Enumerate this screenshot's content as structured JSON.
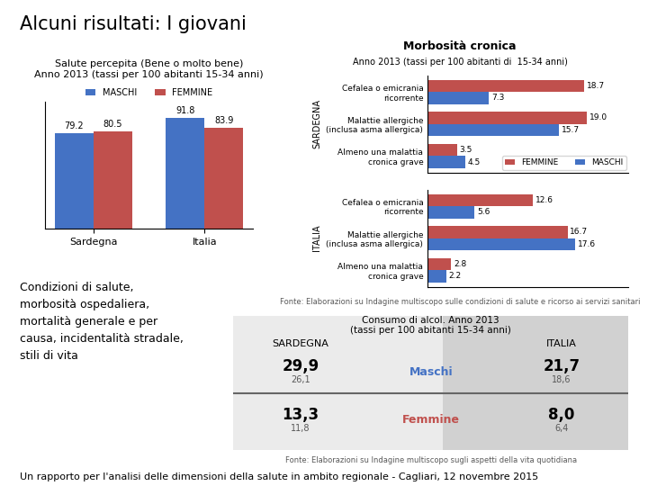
{
  "title": "Alcuni risultati: I giovani",
  "annotations": [
    "Condizioni di salute,\nmorbosità ospedaliera,\nmortalità generale e per\ncausa, incidentalità stradale,\nstili di vita",
    "Un rapporto per l'analisi delle dimensioni della salute in ambito regionale - Cagliari, 12 novembre 2015"
  ],
  "chart_data": [
    {
      "type": "bar",
      "title": "Salute percepita (Bene o molto bene)\nAnno 2013 (tassi per 100 abitanti 15-34 anni)",
      "categories": [
        "Sardegna",
        "Italia"
      ],
      "series": [
        {
          "name": "MASCHI",
          "color": "#4472C4",
          "values": [
            79.2,
            91.8
          ]
        },
        {
          "name": "FEMMINE",
          "color": "#C0504D",
          "values": [
            80.5,
            83.9
          ]
        }
      ],
      "ylim": [
        0,
        105
      ],
      "yticks": [],
      "tick_labels": "x",
      "data_labels": true,
      "legend": "upper center"
    },
    {
      "type": "bar",
      "orientation": "horizontal",
      "title": "Morbosità cronica",
      "subtitle": "Anno 2013 (tassi per 100 abitanti di  15-34 anni)",
      "ylabel": "SARDEGNA",
      "categories": [
        "Cefalea o emicrania ricorrente",
        "Malattie allergiche (inclusa asma allergica)",
        "Almeno una malattia cronica grave"
      ],
      "series": [
        {
          "name": "FEMMINE",
          "color": "#C0504D",
          "values": [
            18.7,
            19.0,
            3.5
          ]
        },
        {
          "name": "MASCHI",
          "color": "#4472C4",
          "values": [
            7.3,
            15.7,
            4.5
          ]
        }
      ],
      "xlim": [
        0,
        24
      ],
      "xticks": [],
      "tick_labels": "y",
      "data_labels": true,
      "legend": "lower right"
    },
    {
      "type": "bar",
      "orientation": "horizontal",
      "ylabel": "ITALIA",
      "categories": [
        "Cefalea o emicrania ricorrente",
        "Malattie allergiche (inclusa asma allergica)",
        "Almeno una malattia cronica grave"
      ],
      "series": [
        {
          "name": "FEMMINE",
          "color": "#C0504D",
          "values": [
            12.6,
            16.7,
            2.8
          ]
        },
        {
          "name": "MASCHI",
          "color": "#4472C4",
          "values": [
            5.6,
            17.6,
            2.2
          ]
        }
      ],
      "xlim": [
        0,
        24
      ],
      "xticks": [],
      "tick_labels": "y",
      "data_labels": true,
      "annotations": [
        "Fonte: Elaborazioni su Indagine multiscopo sulle condizioni di salute e ricorso ai servizi sanitari"
      ]
    },
    {
      "type": "table",
      "title": "Consumo di alcol. Anno 2013\n(tassi per 100 abitanti 15-34 anni)",
      "categories": [
        "SARDEGNA",
        "ITALIA"
      ],
      "series": [
        {
          "name": "Maschi",
          "color": "#4472C4",
          "values": [
            [
              29.9,
              26.1
            ],
            [
              21.7,
              18.6
            ]
          ],
          "value_labels": [
            [
              "29,9",
              "26,1"
            ],
            [
              "21,7",
              "18,6"
            ]
          ]
        },
        {
          "name": "Femmine",
          "color": "#C0504D",
          "values": [
            [
              13.3,
              11.8
            ],
            [
              8.0,
              6.4
            ]
          ],
          "value_labels": [
            [
              "13,3",
              "11,8"
            ],
            [
              "8,0",
              "6,4"
            ]
          ]
        }
      ],
      "annotations": [
        "Fonte: Elaborazioni su Indagine multiscopo sugli aspetti della vita quotidiana"
      ]
    }
  ]
}
